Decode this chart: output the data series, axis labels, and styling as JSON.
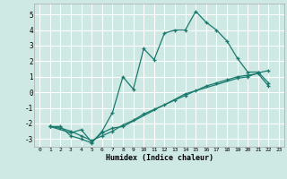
{
  "title": "",
  "xlabel": "Humidex (Indice chaleur)",
  "background_color": "#cee8e4",
  "grid_color": "#ffffff",
  "line_color": "#1a7a6e",
  "xlim": [
    -0.5,
    23.5
  ],
  "ylim": [
    -3.5,
    5.7
  ],
  "yticks": [
    -3,
    -2,
    -1,
    0,
    1,
    2,
    3,
    4,
    5
  ],
  "xticks": [
    0,
    1,
    2,
    3,
    4,
    5,
    6,
    7,
    8,
    9,
    10,
    11,
    12,
    13,
    14,
    15,
    16,
    17,
    18,
    19,
    20,
    21,
    22,
    23
  ],
  "line1_x": [
    1,
    2,
    3,
    4,
    5,
    6,
    7,
    8,
    9,
    10,
    11,
    12,
    13,
    14,
    15,
    16,
    17,
    18,
    19,
    20,
    21,
    22
  ],
  "line1_y": [
    -2.2,
    -2.2,
    -2.8,
    -3.0,
    -3.25,
    -2.5,
    -1.3,
    1.0,
    0.2,
    2.8,
    2.1,
    3.8,
    4.0,
    4.0,
    5.2,
    4.5,
    4.0,
    3.3,
    2.2,
    1.3,
    1.3,
    0.6
  ],
  "line2_x": [
    1,
    3,
    4,
    5,
    6,
    7,
    8,
    14,
    19,
    20,
    21,
    22
  ],
  "line2_y": [
    -2.2,
    -2.6,
    -2.4,
    -3.2,
    -2.6,
    -2.3,
    -2.2,
    -0.1,
    0.9,
    1.0,
    1.25,
    1.4
  ],
  "line3_x": [
    1,
    2,
    3,
    4,
    5,
    6,
    7,
    8,
    9,
    10,
    11,
    12,
    13,
    14,
    15,
    16,
    17,
    18,
    19,
    20,
    21,
    22
  ],
  "line3_y": [
    -2.2,
    -2.3,
    -2.5,
    -2.8,
    -3.1,
    -2.8,
    -2.5,
    -2.1,
    -1.8,
    -1.4,
    -1.1,
    -0.8,
    -0.5,
    -0.2,
    0.1,
    0.4,
    0.6,
    0.8,
    1.0,
    1.1,
    1.2,
    0.4
  ]
}
